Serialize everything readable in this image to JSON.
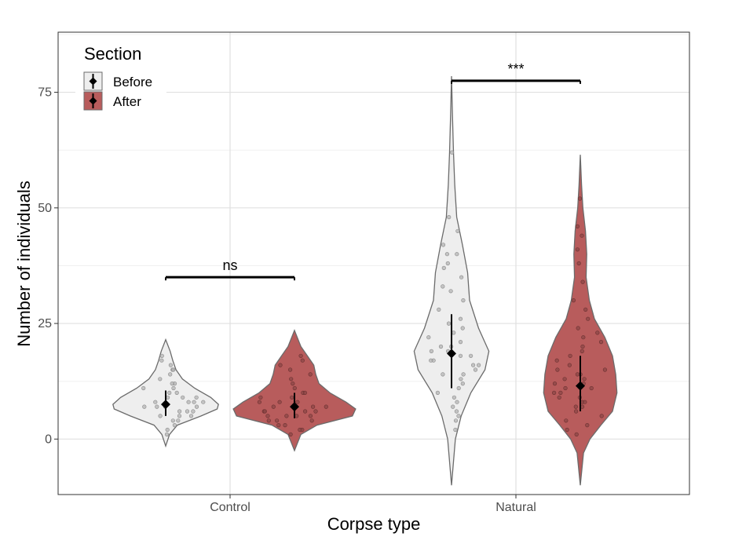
{
  "chart_data": {
    "type": "violin",
    "xlabel": "Corpse type",
    "ylabel": "Number of individuals",
    "categories": [
      "Control",
      "Natural"
    ],
    "ylim": [
      -12,
      88
    ],
    "yticks": [
      0,
      25,
      50,
      75
    ],
    "grid": true,
    "legend": {
      "title": "Section",
      "position": "top-left",
      "entries": [
        "Before",
        "After"
      ]
    },
    "series": [
      {
        "name": "Before",
        "color": "#eeeeee",
        "violins": [
          {
            "category": "Control",
            "mean": 7.5,
            "err_low": 5.0,
            "err_high": 10.5,
            "range": [
              -1.5,
              21.5
            ],
            "profile": [
              [
                -1.5,
                0
              ],
              [
                1,
                0.06
              ],
              [
                3,
                0.18
              ],
              [
                5,
                0.55
              ],
              [
                6.5,
                0.8
              ],
              [
                7.5,
                0.82
              ],
              [
                9,
                0.7
              ],
              [
                11,
                0.45
              ],
              [
                13,
                0.26
              ],
              [
                15,
                0.16
              ],
              [
                17,
                0.11
              ],
              [
                19,
                0.07
              ],
              [
                21.5,
                0
              ]
            ],
            "points": [
              1,
              2,
              3,
              4,
              4,
              5,
              5,
              5,
              6,
              6,
              6,
              7,
              7,
              7,
              7,
              8,
              8,
              8,
              8,
              9,
              9,
              9,
              10,
              10,
              11,
              11,
              12,
              12,
              13,
              14,
              15,
              15,
              16,
              17,
              18
            ]
          },
          {
            "category": "Natural",
            "mean": 18.5,
            "err_low": 11.0,
            "err_high": 27.0,
            "range": [
              -10,
              78.5
            ],
            "profile": [
              [
                -10,
                0
              ],
              [
                0,
                0.06
              ],
              [
                5,
                0.15
              ],
              [
                10,
                0.3
              ],
              [
                15,
                0.52
              ],
              [
                19,
                0.58
              ],
              [
                24,
                0.42
              ],
              [
                30,
                0.28
              ],
              [
                36,
                0.25
              ],
              [
                42,
                0.17
              ],
              [
                48,
                0.08
              ],
              [
                55,
                0.05
              ],
              [
                62,
                0.03
              ],
              [
                70,
                0.015
              ],
              [
                78.5,
                0
              ]
            ],
            "points": [
              2,
              4,
              5,
              6,
              7,
              8,
              9,
              10,
              11,
              12,
              13,
              14,
              14,
              15,
              16,
              16,
              17,
              17,
              18,
              18,
              19,
              19,
              20,
              20,
              21,
              22,
              23,
              24,
              25,
              26,
              28,
              30,
              32,
              33,
              35,
              37,
              38,
              40,
              40,
              42,
              45,
              48,
              62
            ]
          }
        ]
      },
      {
        "name": "After",
        "color": "#b85c5c",
        "violins": [
          {
            "category": "Control",
            "mean": 7.0,
            "err_low": 4.5,
            "err_high": 10.0,
            "range": [
              -2.5,
              23.5
            ],
            "profile": [
              [
                -2.5,
                0
              ],
              [
                1,
                0.1
              ],
              [
                3,
                0.35
              ],
              [
                5,
                0.9
              ],
              [
                6.5,
                0.95
              ],
              [
                8,
                0.8
              ],
              [
                10,
                0.55
              ],
              [
                12,
                0.38
              ],
              [
                14,
                0.33
              ],
              [
                16,
                0.3
              ],
              [
                18,
                0.2
              ],
              [
                20,
                0.1
              ],
              [
                23.5,
                0
              ]
            ],
            "points": [
              1,
              2,
              2,
              3,
              3,
              4,
              4,
              4,
              5,
              5,
              5,
              5,
              6,
              6,
              6,
              6,
              7,
              7,
              7,
              8,
              8,
              8,
              9,
              9,
              10,
              10,
              11,
              12,
              13,
              14,
              15,
              16,
              17,
              18
            ]
          },
          {
            "category": "Natural",
            "mean": 11.5,
            "err_low": 6.0,
            "err_high": 18.0,
            "range": [
              -10,
              61.5
            ],
            "profile": [
              [
                -10,
                0
              ],
              [
                -3,
                0.05
              ],
              [
                0,
                0.15
              ],
              [
                3,
                0.32
              ],
              [
                6,
                0.5
              ],
              [
                10,
                0.57
              ],
              [
                14,
                0.55
              ],
              [
                18,
                0.5
              ],
              [
                22,
                0.38
              ],
              [
                26,
                0.22
              ],
              [
                30,
                0.14
              ],
              [
                35,
                0.09
              ],
              [
                40,
                0.1
              ],
              [
                45,
                0.08
              ],
              [
                50,
                0.04
              ],
              [
                55,
                0.02
              ],
              [
                61.5,
                0
              ]
            ],
            "points": [
              1,
              2,
              3,
              4,
              5,
              6,
              7,
              7,
              8,
              8,
              9,
              9,
              10,
              10,
              11,
              11,
              12,
              12,
              13,
              13,
              14,
              14,
              15,
              15,
              16,
              17,
              18,
              19,
              20,
              21,
              22,
              23,
              24,
              26,
              28,
              30,
              34,
              38,
              41,
              44,
              46,
              52
            ]
          }
        ]
      }
    ],
    "annotations": [
      {
        "category": "Control",
        "text": "ns",
        "y": 35
      },
      {
        "category": "Natural",
        "text": "***",
        "y": 77.5
      }
    ]
  }
}
